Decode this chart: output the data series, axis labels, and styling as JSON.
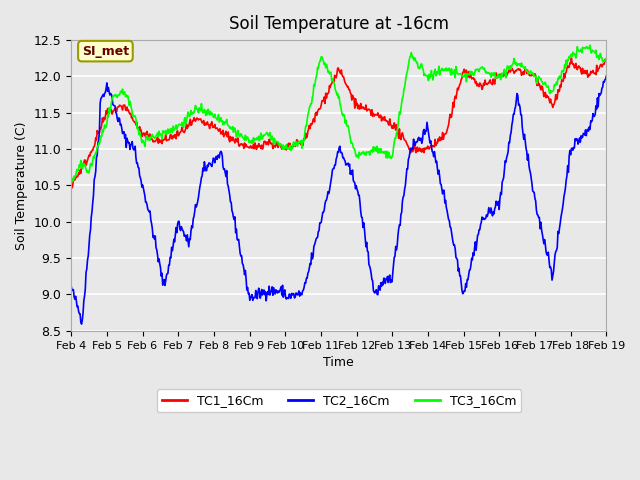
{
  "title": "Soil Temperature at -16cm",
  "xlabel": "Time",
  "ylabel": "Soil Temperature (C)",
  "ylim": [
    8.5,
    12.5
  ],
  "background_color": "#e8e8e8",
  "plot_bg_color": "#e8e8e8",
  "grid_color": "white",
  "series": {
    "TC1_16Cm": {
      "color": "red",
      "lw": 1.2
    },
    "TC2_16Cm": {
      "color": "blue",
      "lw": 1.2
    },
    "TC3_16Cm": {
      "color": "lime",
      "lw": 1.2
    }
  },
  "legend_box": {
    "label": "SI_met",
    "facecolor": "#ffffcc",
    "edgecolor": "#999900",
    "textcolor": "#660000"
  },
  "x_tick_labels": [
    "Feb 4",
    "Feb 5",
    "Feb 6",
    "Feb 7",
    "Feb 8",
    "Feb 9",
    "Feb 10",
    "Feb 11",
    "Feb 12",
    "Feb 13",
    "Feb 14",
    "Feb 15",
    "Feb 16",
    "Feb 17",
    "Feb 18",
    "Feb 19"
  ],
  "yticks": [
    8.5,
    9.0,
    9.5,
    10.0,
    10.5,
    11.0,
    11.5,
    12.0,
    12.5
  ]
}
